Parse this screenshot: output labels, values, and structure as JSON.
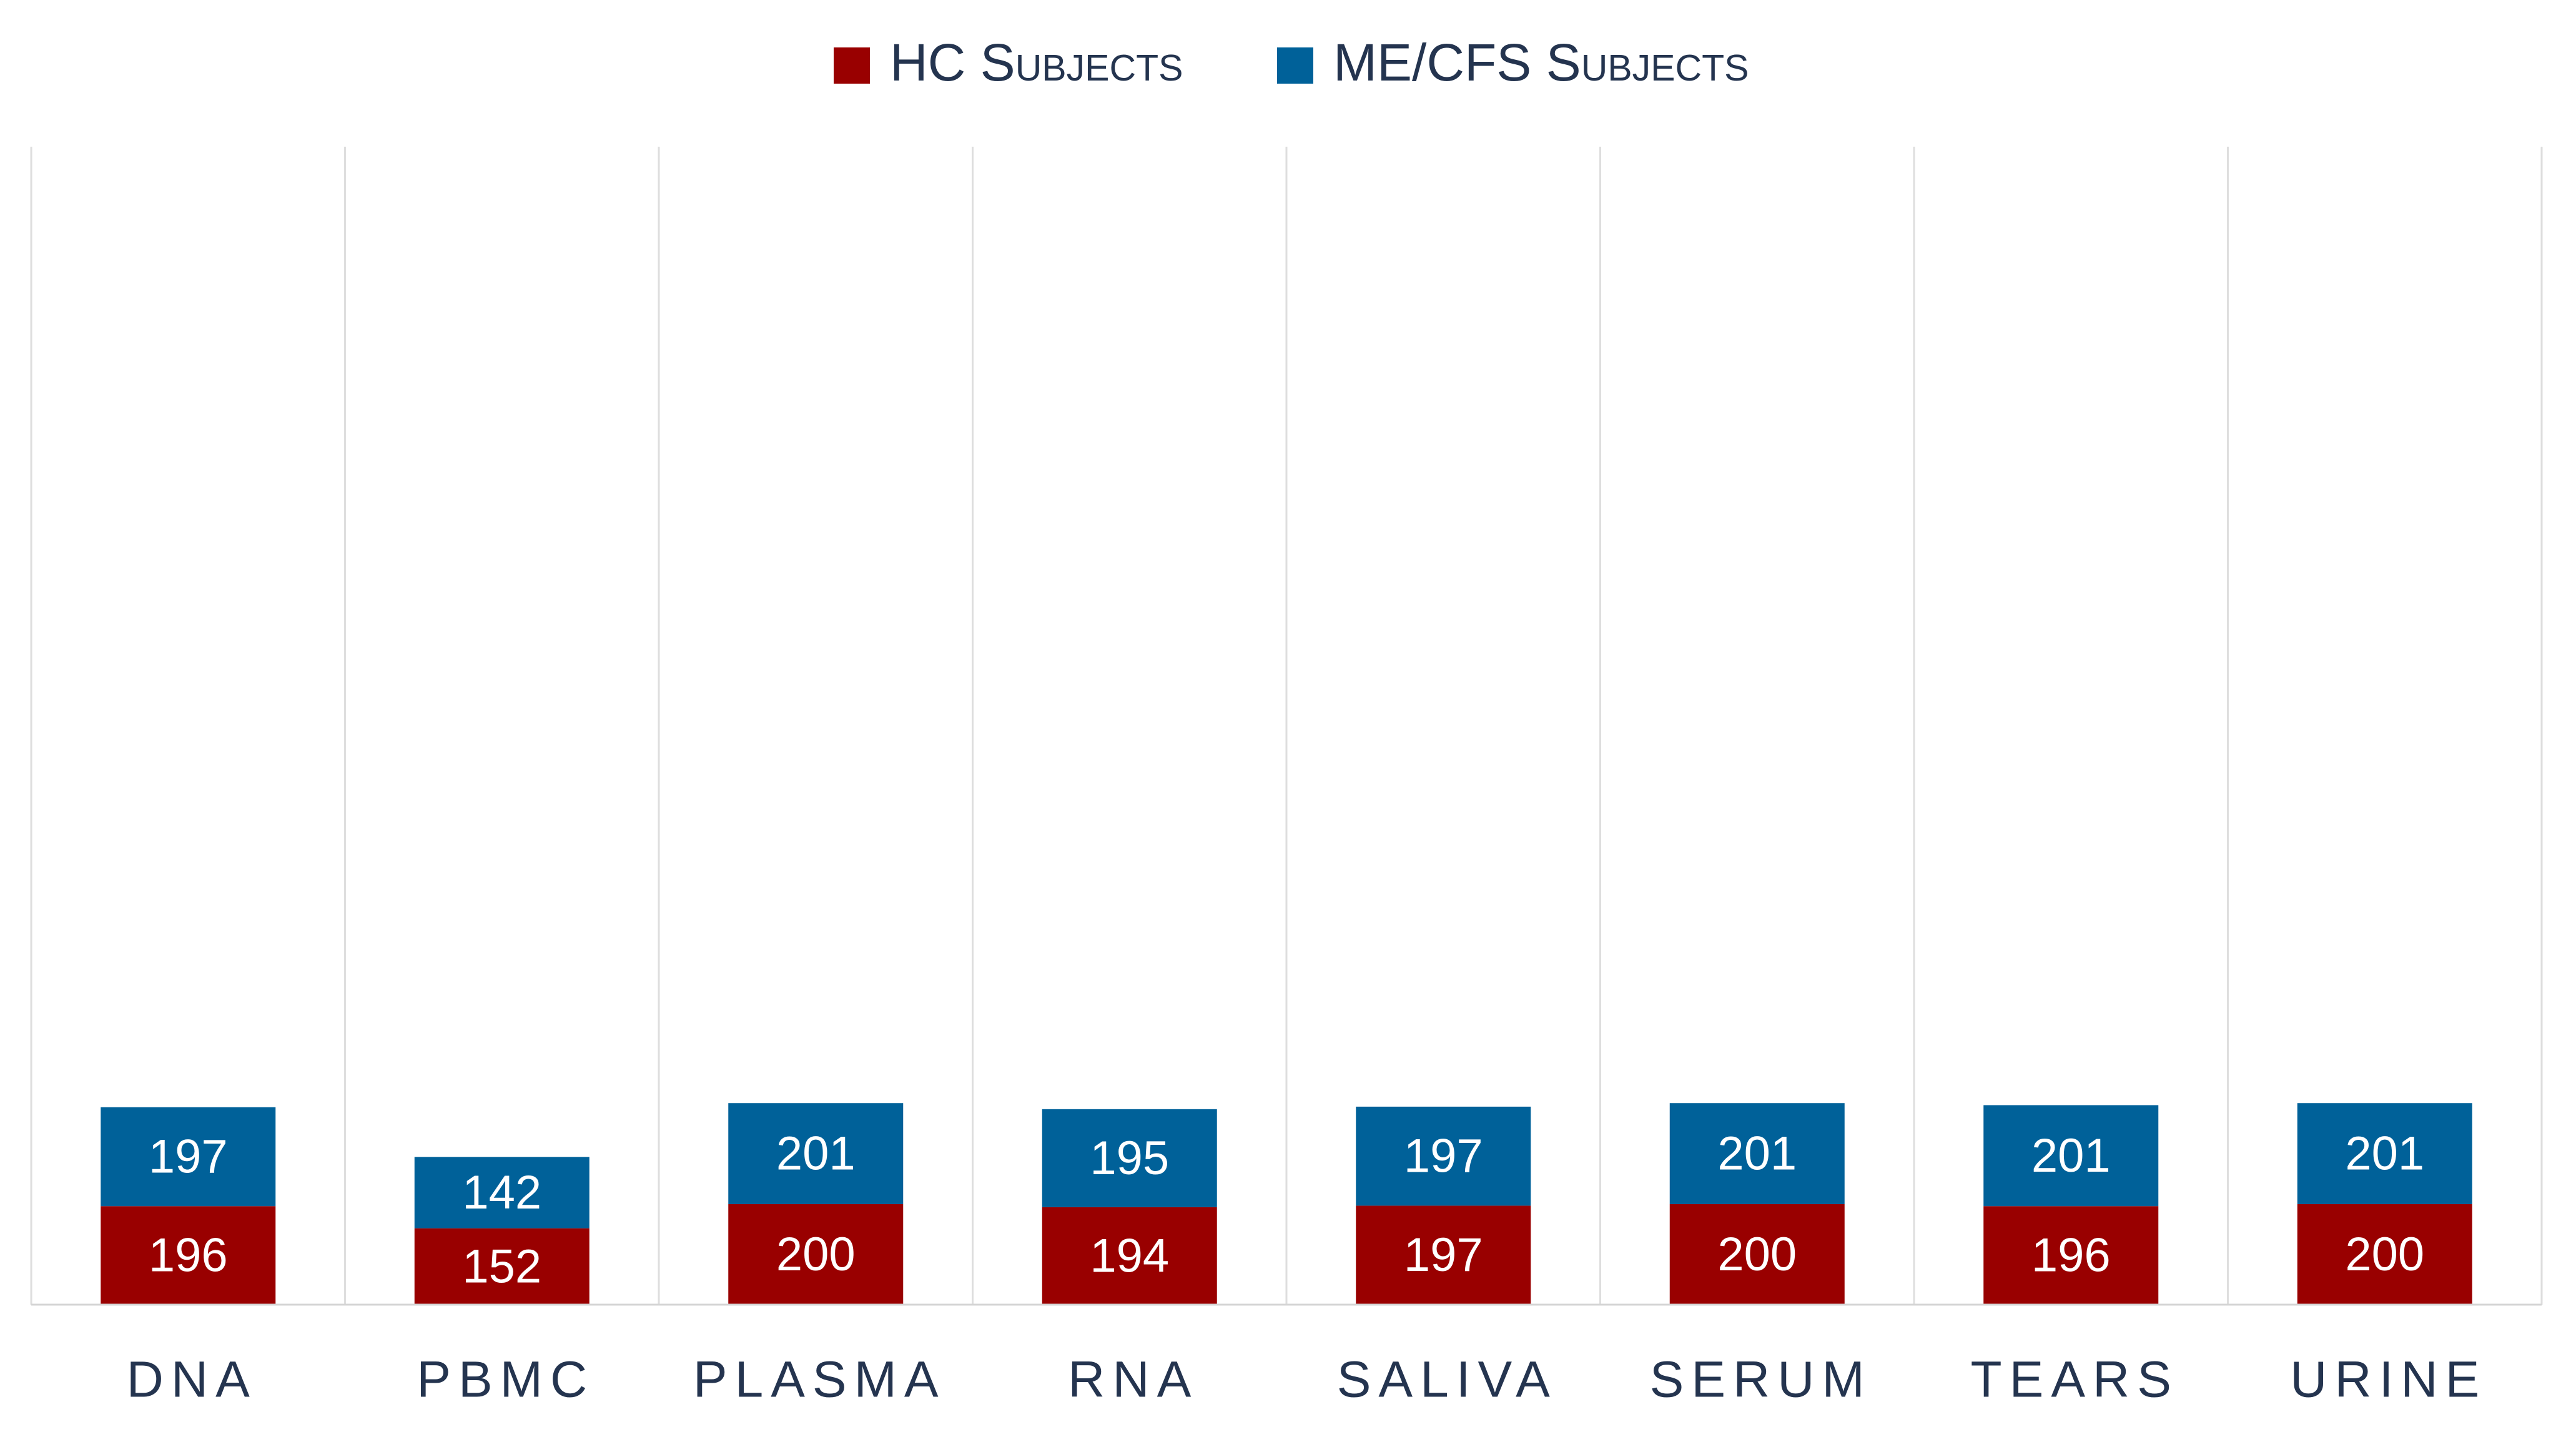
{
  "chart_data": {
    "type": "bar",
    "stacked": true,
    "categories": [
      "DNA",
      "PBMC",
      "PLASMA",
      "RNA",
      "SALIVA",
      "SERUM",
      "TEARS",
      "URINE"
    ],
    "series": [
      {
        "name": "HC Subjects",
        "color": "#990000",
        "values": [
          196,
          152,
          200,
          194,
          197,
          200,
          196,
          200
        ]
      },
      {
        "name": "ME/CFS Subjects",
        "color": "#006199",
        "values": [
          197,
          142,
          201,
          195,
          197,
          201,
          201,
          201
        ]
      }
    ],
    "title": "",
    "xlabel": "",
    "ylabel": "",
    "ylim": [
      0,
      450
    ],
    "legend_position": "top-center",
    "grid": "vertical category separators",
    "data_labels": true
  }
}
